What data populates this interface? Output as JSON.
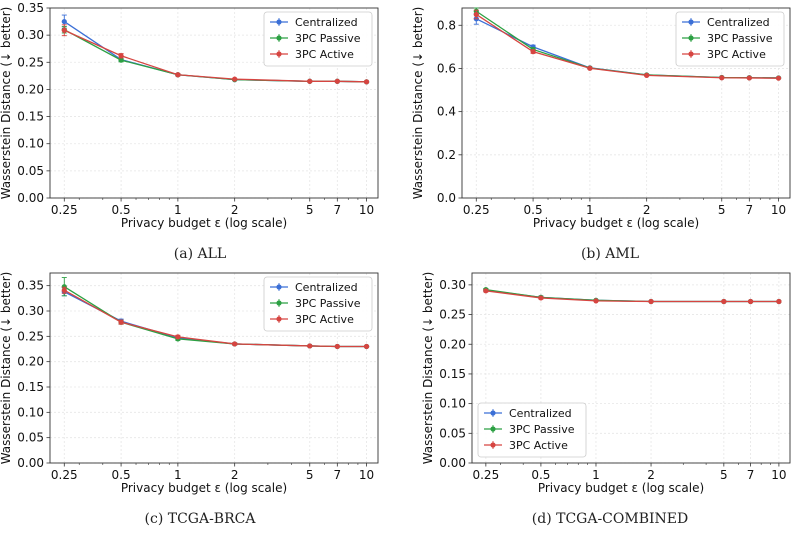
{
  "figure": {
    "x_ticks": [
      0.25,
      0.5,
      1,
      2,
      5,
      7,
      10
    ],
    "x_tick_labels": [
      "0.25",
      "0.5",
      "1",
      "2",
      "5",
      "7",
      "10"
    ],
    "xlabel": "Privacy budget ε (log scale)",
    "ylabel": "Wasserstein Distance (↓ better)",
    "series_names": [
      "Centralized",
      "3PC Passive",
      "3PC Active"
    ],
    "colors": {
      "Centralized": "#3b6fd6",
      "3PC Passive": "#2ca043",
      "3PC Active": "#d64541"
    }
  },
  "chart_data": [
    {
      "type": "line",
      "caption": "(a) ALL",
      "x": [
        0.25,
        0.5,
        1,
        2,
        5,
        7,
        10
      ],
      "xscale": "log",
      "ylim": [
        0,
        0.35
      ],
      "yticks": [
        0.0,
        0.05,
        0.1,
        0.15,
        0.2,
        0.25,
        0.3,
        0.35
      ],
      "ytick_labels": [
        "0.00",
        "0.05",
        "0.10",
        "0.15",
        "0.20",
        "0.25",
        "0.30",
        "0.35"
      ],
      "legend": "top-right",
      "grid": true,
      "series": [
        {
          "name": "Centralized",
          "values": [
            0.325,
            0.255,
            0.227,
            0.218,
            0.215,
            0.215,
            0.214
          ],
          "err": [
            0.012,
            0.003,
            0.002,
            0.001,
            0.001,
            0.001,
            0.001
          ]
        },
        {
          "name": "3PC Passive",
          "values": [
            0.31,
            0.254,
            0.227,
            0.218,
            0.215,
            0.215,
            0.214
          ],
          "err": [
            0.006,
            0.003,
            0.002,
            0.001,
            0.001,
            0.001,
            0.001
          ]
        },
        {
          "name": "3PC Active",
          "values": [
            0.309,
            0.262,
            0.227,
            0.219,
            0.215,
            0.215,
            0.214
          ],
          "err": [
            0.01,
            0.004,
            0.002,
            0.001,
            0.001,
            0.001,
            0.001
          ]
        }
      ]
    },
    {
      "type": "line",
      "caption": "(b) AML",
      "x": [
        0.25,
        0.5,
        1,
        2,
        5,
        7,
        10
      ],
      "xscale": "log",
      "ylim": [
        0,
        0.88
      ],
      "yticks": [
        0.0,
        0.2,
        0.4,
        0.6,
        0.8
      ],
      "ytick_labels": [
        "0.0",
        "0.2",
        "0.4",
        "0.6",
        "0.8"
      ],
      "legend": "top-right",
      "grid": true,
      "series": [
        {
          "name": "Centralized",
          "values": [
            0.83,
            0.7,
            0.603,
            0.57,
            0.558,
            0.557,
            0.556
          ],
          "err": [
            0.025,
            0.008,
            0.004,
            0.003,
            0.002,
            0.002,
            0.002
          ]
        },
        {
          "name": "3PC Passive",
          "values": [
            0.865,
            0.688,
            0.602,
            0.57,
            0.558,
            0.557,
            0.556
          ],
          "err": [
            0.015,
            0.008,
            0.004,
            0.003,
            0.002,
            0.002,
            0.002
          ]
        },
        {
          "name": "3PC Active",
          "values": [
            0.85,
            0.678,
            0.601,
            0.568,
            0.557,
            0.556,
            0.555
          ],
          "err": [
            0.02,
            0.008,
            0.004,
            0.003,
            0.002,
            0.002,
            0.002
          ]
        }
      ]
    },
    {
      "type": "line",
      "caption": "(c) TCGA-BRCA",
      "x": [
        0.25,
        0.5,
        1,
        2,
        5,
        7,
        10
      ],
      "xscale": "log",
      "ylim": [
        0,
        0.375
      ],
      "yticks": [
        0.0,
        0.05,
        0.1,
        0.15,
        0.2,
        0.25,
        0.3,
        0.35
      ],
      "ytick_labels": [
        "0.00",
        "0.05",
        "0.10",
        "0.15",
        "0.20",
        "0.25",
        "0.30",
        "0.35"
      ],
      "legend": "top-right",
      "grid": true,
      "series": [
        {
          "name": "Centralized",
          "values": [
            0.338,
            0.28,
            0.247,
            0.235,
            0.231,
            0.23,
            0.23
          ],
          "err": [
            0.008,
            0.004,
            0.003,
            0.002,
            0.001,
            0.001,
            0.001
          ]
        },
        {
          "name": "3PC Passive",
          "values": [
            0.348,
            0.278,
            0.245,
            0.235,
            0.231,
            0.23,
            0.23
          ],
          "err": [
            0.018,
            0.004,
            0.003,
            0.002,
            0.001,
            0.001,
            0.001
          ]
        },
        {
          "name": "3PC Active",
          "values": [
            0.341,
            0.278,
            0.249,
            0.235,
            0.231,
            0.23,
            0.23
          ],
          "err": [
            0.006,
            0.004,
            0.003,
            0.002,
            0.001,
            0.001,
            0.001
          ]
        }
      ]
    },
    {
      "type": "line",
      "caption": "(d) TCGA-COMBINED",
      "x": [
        0.25,
        0.5,
        1,
        2,
        5,
        7,
        10
      ],
      "xscale": "log",
      "ylim": [
        0,
        0.32
      ],
      "yticks": [
        0.0,
        0.05,
        0.1,
        0.15,
        0.2,
        0.25,
        0.3
      ],
      "ytick_labels": [
        "0.00",
        "0.05",
        "0.10",
        "0.15",
        "0.20",
        "0.25",
        "0.30"
      ],
      "legend": "bottom-left",
      "grid": true,
      "series": [
        {
          "name": "Centralized",
          "values": [
            0.291,
            0.279,
            0.274,
            0.272,
            0.272,
            0.272,
            0.272
          ],
          "err": [
            0.002,
            0.002,
            0.001,
            0.001,
            0.001,
            0.001,
            0.001
          ]
        },
        {
          "name": "3PC Passive",
          "values": [
            0.292,
            0.279,
            0.274,
            0.272,
            0.272,
            0.272,
            0.272
          ],
          "err": [
            0.002,
            0.002,
            0.001,
            0.001,
            0.001,
            0.001,
            0.001
          ]
        },
        {
          "name": "3PC Active",
          "values": [
            0.29,
            0.278,
            0.273,
            0.272,
            0.272,
            0.272,
            0.272
          ],
          "err": [
            0.002,
            0.002,
            0.001,
            0.001,
            0.001,
            0.001,
            0.001
          ]
        }
      ]
    }
  ]
}
